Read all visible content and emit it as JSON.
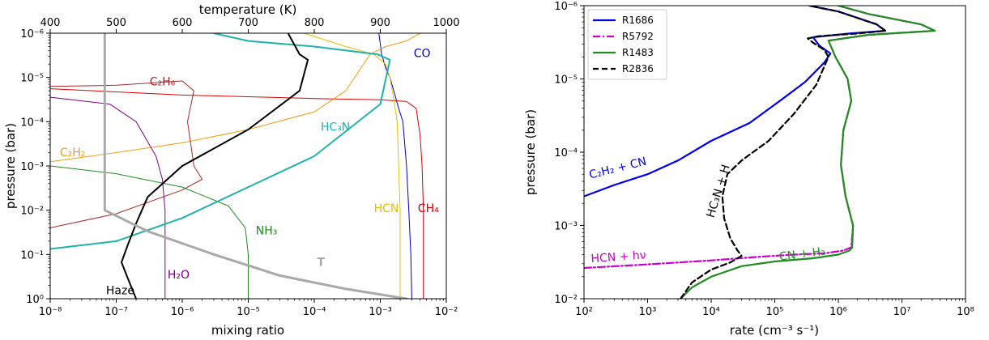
{
  "chart_data": [
    {
      "type": "line",
      "xscale": "log",
      "yscale": "log",
      "xlim": [
        1e-08,
        0.01
      ],
      "ylim": [
        1,
        1e-06
      ],
      "xlabel": "mixing ratio",
      "ylabel": "pressure (bar)",
      "x_ticks": [
        "10⁻⁸",
        "10⁻⁷",
        "10⁻⁶",
        "10⁻⁵",
        "10⁻⁴",
        "10⁻³",
        "10⁻²"
      ],
      "y_ticks": [
        "10⁰",
        "10⁻¹",
        "10⁻²",
        "10⁻³",
        "10⁻⁴",
        "10⁻⁵",
        "10⁻⁶"
      ],
      "top_axis": {
        "label": "temperature (K)",
        "range": [
          400,
          1000
        ],
        "ticks": [
          "400",
          "500",
          "600",
          "700",
          "800",
          "900",
          "1000"
        ]
      },
      "series": [
        {
          "name": "CO",
          "color": "#0000cc",
          "width": 1,
          "points": [
            [
              0.00095,
              1e-06
            ],
            [
              0.00105,
              3e-06
            ],
            [
              0.0012,
              6e-06
            ],
            [
              0.0014,
              1e-05
            ],
            [
              0.0016,
              2e-05
            ],
            [
              0.0019,
              5e-05
            ],
            [
              0.0022,
              0.0001
            ],
            [
              0.0025,
              0.001
            ],
            [
              0.0027,
              0.01
            ],
            [
              0.0029,
              0.1
            ],
            [
              0.003,
              1
            ]
          ]
        },
        {
          "name": "CH₄",
          "color": "#dd0000",
          "width": 1,
          "points": [
            [
              1e-08,
              1.8e-05
            ],
            [
              1e-06,
              2.5e-05
            ],
            [
              0.0001,
              3e-05
            ],
            [
              0.001,
              3.2e-05
            ],
            [
              0.0025,
              3.5e-05
            ],
            [
              0.0035,
              5e-05
            ],
            [
              0.004,
              0.0002
            ],
            [
              0.0043,
              0.001
            ],
            [
              0.0045,
              0.01
            ],
            [
              0.0045,
              0.1
            ],
            [
              0.0045,
              1
            ]
          ]
        },
        {
          "name": "HCN",
          "color": "#e6c000",
          "width": 1,
          "points": [
            [
              7e-05,
              1e-06
            ],
            [
              0.0003,
              2e-06
            ],
            [
              0.0008,
              3e-06
            ],
            [
              0.0012,
              5e-06
            ],
            [
              0.0014,
              1e-05
            ],
            [
              0.0016,
              3e-05
            ],
            [
              0.0018,
              0.0001
            ],
            [
              0.0019,
              0.001
            ],
            [
              0.002,
              0.01
            ],
            [
              0.002,
              0.1
            ],
            [
              0.002,
              1
            ]
          ]
        },
        {
          "name": "C₂H₂",
          "color": "#f39c12",
          "width": 1,
          "points": [
            [
              1e-08,
              0.0008
            ],
            [
              1e-07,
              0.0005
            ],
            [
              1e-06,
              0.0003
            ],
            [
              1e-05,
              0.00015
            ],
            [
              0.0001,
              6e-05
            ],
            [
              0.0003,
              2e-05
            ],
            [
              0.0007,
              3e-06
            ],
            [
              0.0012,
              2e-06
            ],
            [
              0.0025,
              1.5e-06
            ],
            [
              0.004,
              1e-06
            ]
          ]
        },
        {
          "name": "C₂H₆",
          "color": "#a52a2a",
          "width": 1,
          "points": [
            [
              1e-08,
              0.025
            ],
            [
              1e-07,
              0.012
            ],
            [
              1e-06,
              0.0035
            ],
            [
              2e-06,
              0.002
            ],
            [
              1.5e-06,
              0.001
            ],
            [
              1.2e-06,
              0.0001
            ],
            [
              1.5e-06,
              2e-05
            ],
            [
              1e-06,
              1.2e-05
            ],
            [
              1e-07,
              1.5e-05
            ],
            [
              1e-08,
              1.6e-05
            ]
          ]
        },
        {
          "name": "NH₃",
          "color": "#228b22",
          "width": 1,
          "points": [
            [
              1e-08,
              0.001
            ],
            [
              1e-07,
              0.0015
            ],
            [
              1e-06,
              0.003
            ],
            [
              5e-06,
              0.008
            ],
            [
              9e-06,
              0.025
            ],
            [
              1e-05,
              0.1
            ],
            [
              1e-05,
              1
            ]
          ]
        },
        {
          "name": "H₂O",
          "color": "#800080",
          "width": 1,
          "points": [
            [
              1e-08,
              2.8e-05
            ],
            [
              8e-08,
              4e-05
            ],
            [
              2e-07,
              0.0001
            ],
            [
              4e-07,
              0.0006
            ],
            [
              5e-07,
              0.002
            ],
            [
              5.5e-07,
              0.01
            ],
            [
              5.5e-07,
              0.1
            ],
            [
              5.5e-07,
              1
            ]
          ]
        },
        {
          "name": "HC₃N",
          "color": "#20b2aa",
          "width": 2,
          "points": [
            [
              1e-08,
              0.075
            ],
            [
              1e-07,
              0.05
            ],
            [
              1e-06,
              0.015
            ],
            [
              1e-05,
              0.003
            ],
            [
              0.0001,
              0.0006
            ],
            [
              0.001,
              4e-05
            ],
            [
              0.0014,
              4e-06
            ],
            [
              0.0009,
              3e-06
            ],
            [
              0.0001,
              2e-06
            ],
            [
              1e-05,
              1.5e-06
            ],
            [
              3e-06,
              1e-06
            ]
          ]
        },
        {
          "name": "Haze",
          "color": "#000000",
          "width": 2,
          "points": [
            [
              2e-07,
              1
            ],
            [
              1.5e-07,
              0.35
            ],
            [
              1.2e-07,
              0.15
            ],
            [
              1.5e-07,
              0.06
            ],
            [
              2e-07,
              0.02
            ],
            [
              3e-07,
              0.005
            ],
            [
              1e-06,
              0.001
            ],
            [
              1e-05,
              0.00015
            ],
            [
              6e-05,
              2e-05
            ],
            [
              8e-05,
              4e-06
            ],
            [
              6e-05,
              3e-06
            ],
            [
              4e-05,
              1e-06
            ]
          ]
        },
        {
          "name": "T",
          "color": "#a9a9a9",
          "width": 3,
          "points": [
            [
              6.7e-08,
              1e-06
            ],
            [
              6.7e-08,
              0.01
            ],
            [
              3e-07,
              0.03
            ],
            [
              3e-06,
              0.1
            ],
            [
              3e-05,
              0.3
            ],
            [
              0.0003,
              0.6
            ],
            [
              0.0025,
              1
            ]
          ]
        }
      ],
      "labels": [
        {
          "text": "CO",
          "color": "#0000cc",
          "x": 0.0032,
          "y": 3.5e-06
        },
        {
          "text": "CH₄",
          "color": "#dd0000",
          "x": 0.0037,
          "y": 0.011
        },
        {
          "text": "HCN",
          "color": "#e6c000",
          "x": 0.0008,
          "y": 0.011
        },
        {
          "text": "C₂H₂",
          "color": "#f39c12",
          "x": 1.4e-08,
          "y": 0.0006
        },
        {
          "text": "C₂H₆",
          "color": "#a52a2a",
          "x": 3.2e-07,
          "y": 1.5e-05
        },
        {
          "text": "NH₃",
          "color": "#228b22",
          "x": 1.3e-05,
          "y": 0.035
        },
        {
          "text": "H₂O",
          "color": "#800080",
          "x": 6e-07,
          "y": 0.35
        },
        {
          "text": "HC₃N",
          "color": "#20b2aa",
          "x": 0.000125,
          "y": 0.00016
        },
        {
          "text": "Haze",
          "color": "#000000",
          "x": 7e-08,
          "y": 0.8
        },
        {
          "text": "T",
          "color": "#a9a9a9",
          "x": 0.00011,
          "y": 0.18
        }
      ]
    },
    {
      "type": "line",
      "xscale": "log",
      "yscale": "log",
      "xlim": [
        100,
        100000000
      ],
      "ylim": [
        0.01,
        1e-06
      ],
      "xlabel": "rate (cm⁻³ s⁻¹)",
      "ylabel": "pressure (bar)",
      "x_ticks": [
        "10²",
        "10³",
        "10⁴",
        "10⁵",
        "10⁶",
        "10⁷",
        "10⁸"
      ],
      "y_ticks": [
        "10⁻²",
        "10⁻³",
        "10⁻⁴",
        "10⁻⁵",
        "10⁻⁶"
      ],
      "legend": "top-left",
      "series": [
        {
          "name": "R1686",
          "color": "#0000ee",
          "dash": "solid",
          "width": 2.2,
          "points": [
            [
              100,
              0.0004
            ],
            [
              300,
              0.00028
            ],
            [
              1000,
              0.0002
            ],
            [
              3000,
              0.00013
            ],
            [
              10000,
              7e-05
            ],
            [
              40000,
              4e-05
            ],
            [
              120000,
              2e-05
            ],
            [
              300000,
              1.1e-05
            ],
            [
              600000,
              6e-06
            ],
            [
              750000,
              4.5e-06
            ],
            [
              500000,
              3.5e-06
            ],
            [
              400000,
              2.7e-06
            ],
            [
              1500000,
              2.4e-06
            ],
            [
              5500000,
              2.2e-06
            ],
            [
              4000000,
              1.8e-06
            ],
            [
              1000000,
              1.2e-06
            ],
            [
              350000,
              1e-06
            ]
          ]
        },
        {
          "name": "R5792",
          "color": "#cc00cc",
          "dash": "dashdot",
          "width": 2.2,
          "points": [
            [
              100,
              0.0038
            ],
            [
              1000,
              0.0034
            ],
            [
              10000,
              0.003
            ],
            [
              50000,
              0.0027
            ],
            [
              200000,
              0.0025
            ],
            [
              600000,
              0.0024
            ],
            [
              1200000,
              0.0022
            ],
            [
              1600000,
              0.002
            ],
            [
              1700000,
              0.001
            ],
            [
              1300000,
              0.0004
            ],
            [
              1100000,
              0.00015
            ],
            [
              1200000,
              5e-05
            ],
            [
              1600000,
              2e-05
            ],
            [
              1400000,
              1e-05
            ],
            [
              900000,
              5e-06
            ],
            [
              700000,
              3e-06
            ],
            [
              3000000,
              2.5e-06
            ],
            [
              33000000,
              2.2e-06
            ],
            [
              20000000,
              1.8e-06
            ],
            [
              3000000,
              1.3e-06
            ],
            [
              1000000,
              1e-06
            ]
          ]
        },
        {
          "name": "R1483",
          "color": "#228b22",
          "dash": "solid",
          "width": 2.2,
          "points": [
            [
              3300,
              0.01
            ],
            [
              5000,
              0.007
            ],
            [
              10000,
              0.005
            ],
            [
              30000,
              0.0036
            ],
            [
              100000,
              0.0031
            ],
            [
              400000,
              0.0028
            ],
            [
              1000000,
              0.0025
            ],
            [
              1500000,
              0.0022
            ],
            [
              1650000,
              0.002
            ],
            [
              1700000,
              0.001
            ],
            [
              1300000,
              0.0004
            ],
            [
              1100000,
              0.00015
            ],
            [
              1200000,
              5e-05
            ],
            [
              1600000,
              2e-05
            ],
            [
              1400000,
              1e-05
            ],
            [
              900000,
              5e-06
            ],
            [
              700000,
              3e-06
            ],
            [
              3000000,
              2.5e-06
            ],
            [
              33000000,
              2.2e-06
            ],
            [
              20000000,
              1.8e-06
            ],
            [
              3000000,
              1.3e-06
            ],
            [
              1000000,
              1e-06
            ]
          ]
        },
        {
          "name": "R2836",
          "color": "#000000",
          "dash": "dashed",
          "width": 2.2,
          "points": [
            [
              3300,
              0.01
            ],
            [
              5000,
              0.006
            ],
            [
              10000,
              0.004
            ],
            [
              20000,
              0.0032
            ],
            [
              30000,
              0.0026
            ],
            [
              26000,
              0.0022
            ],
            [
              20000,
              0.0015
            ],
            [
              16000,
              0.0008
            ],
            [
              15000,
              0.0004
            ],
            [
              18000,
              0.0002
            ],
            [
              30000,
              0.00013
            ],
            [
              80000,
              7e-05
            ],
            [
              200000,
              3e-05
            ],
            [
              450000,
              1.2e-05
            ],
            [
              700000,
              5e-06
            ],
            [
              600000,
              4e-06
            ],
            [
              400000,
              3.2e-06
            ],
            [
              330000,
              2.8e-06
            ],
            [
              500000,
              2.6e-06
            ],
            [
              2000000,
              2.4e-06
            ],
            [
              5500000,
              2.2e-06
            ],
            [
              4000000,
              1.8e-06
            ],
            [
              1000000,
              1.2e-06
            ],
            [
              350000,
              1e-06
            ]
          ]
        }
      ],
      "labels": [
        {
          "text": "C₂H₂ + CN",
          "color": "#0000ee",
          "x": 125,
          "y": 0.00023,
          "rotate": -14
        },
        {
          "text": "HC₃N + H",
          "color": "#000000",
          "x": 11000,
          "y": 0.0008,
          "rotate": -73
        },
        {
          "text": "HCN + hν",
          "color": "#cc00cc",
          "x": 130,
          "y": 0.0032,
          "rotate": -4
        },
        {
          "text": "CN + H₂",
          "color": "#228b22",
          "x": 120000,
          "y": 0.003,
          "rotate": -7
        }
      ]
    }
  ]
}
